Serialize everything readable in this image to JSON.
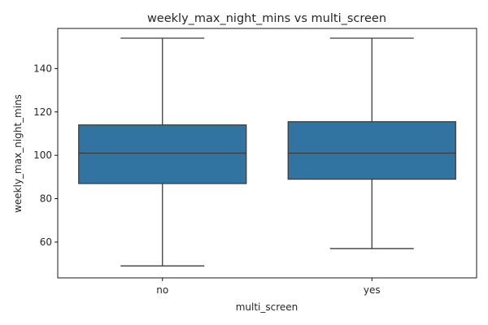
{
  "chart_data": {
    "type": "box",
    "title": "weekly_max_night_mins vs multi_screen",
    "xlabel": "multi_screen",
    "ylabel": "weekly_max_night_mins",
    "categories": [
      "no",
      "yes"
    ],
    "ylim": [
      43.5,
      158.5
    ],
    "yticks": [
      60,
      80,
      100,
      120,
      140
    ],
    "grid": false,
    "box_color": "#3274a1",
    "line_color": "#3d3d3d",
    "boxes": [
      {
        "category": "no",
        "whisker_low": 49,
        "q1": 87,
        "median": 101,
        "q3": 114,
        "whisker_high": 154
      },
      {
        "category": "yes",
        "whisker_low": 57,
        "q1": 89,
        "median": 101,
        "q3": 115.5,
        "whisker_high": 154
      }
    ]
  }
}
